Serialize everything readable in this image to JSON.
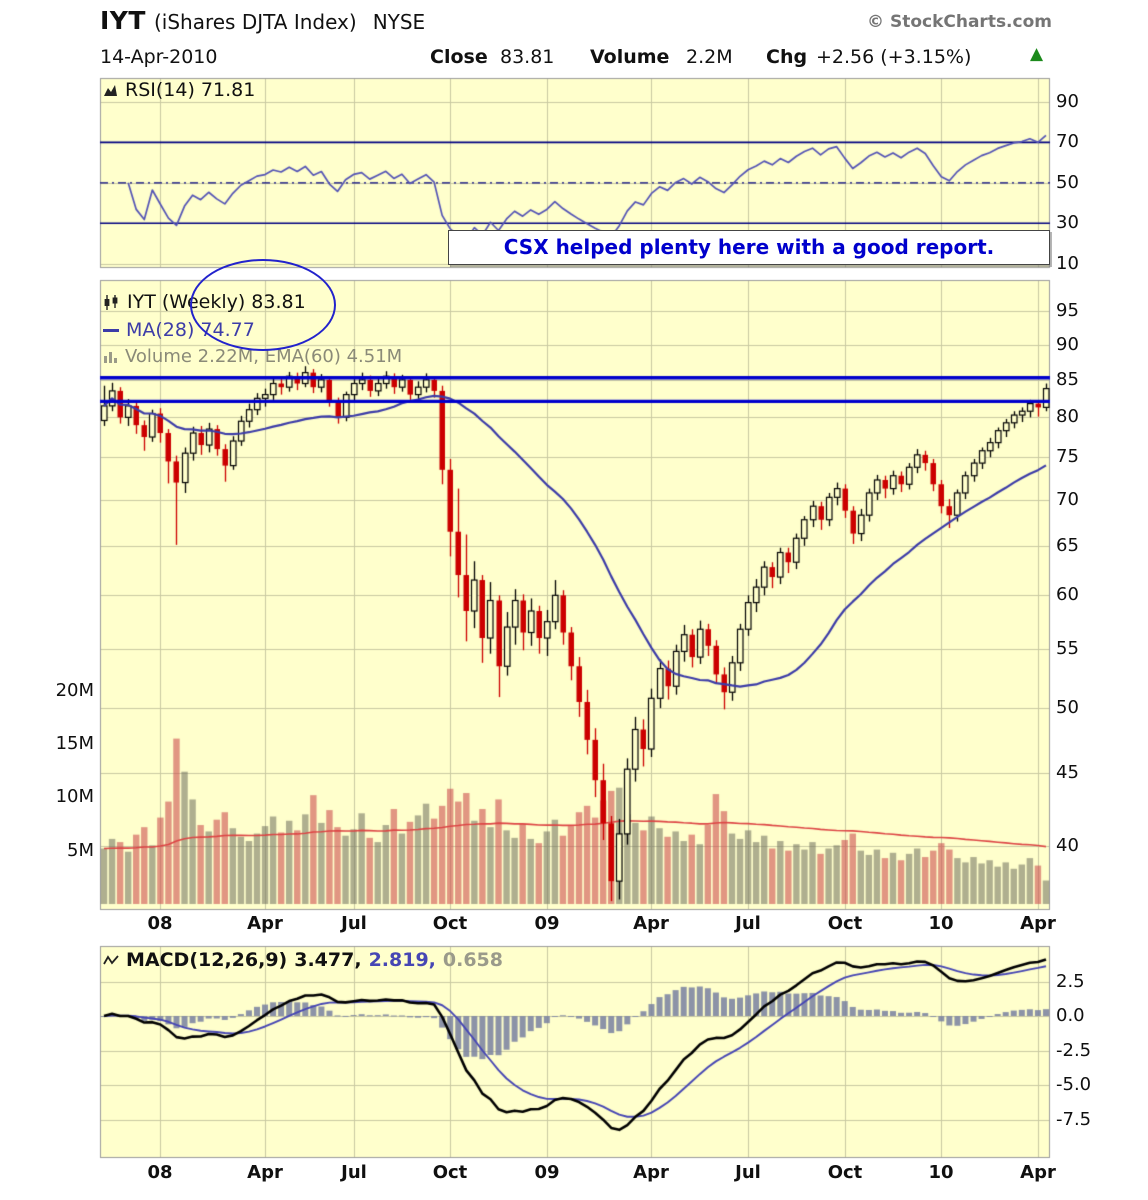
{
  "header": {
    "symbol": "IYT",
    "name": "(iShares DJTA Index)",
    "exchange": "NYSE",
    "brand": "© StockCharts.com",
    "date": "14-Apr-2010",
    "close_label": "Close",
    "close_value": "83.81",
    "volume_label": "Volume",
    "volume_value": "2.2M",
    "chg_label": "Chg",
    "chg_value": "+2.56 (+3.15%)",
    "arrow": "▲"
  },
  "annotation": {
    "text": "CSX helped plenty here with a good report."
  },
  "legends": {
    "rsi": "RSI(14) 71.81",
    "price": "IYT (Weekly) 83.81",
    "ma": "MA(28) 74.77",
    "volume": "Volume 2.22M, EMA(60) 4.51M",
    "macd_name": "MACD(12,26,9)",
    "macd_value": "3.477,",
    "signal_value": "2.819,",
    "hist_value": "0.658"
  },
  "x_axis": {
    "labels": [
      "08",
      "Apr",
      "Jul",
      "Oct",
      "09",
      "Apr",
      "Jul",
      "Oct",
      "10",
      "Apr"
    ],
    "indices": [
      7,
      20,
      31,
      43,
      55,
      68,
      80,
      92,
      104,
      116
    ]
  },
  "axes": {
    "price_ticks": [
      95,
      90,
      85,
      80,
      75,
      70,
      65,
      60,
      55,
      50,
      45,
      40
    ],
    "rsi_ticks": [
      90,
      70,
      50,
      30,
      10
    ],
    "macd_ticks": [
      2.5,
      0.0,
      -2.5,
      -5.0,
      -7.5
    ],
    "volume_tick_labels": [
      "20M",
      "15M",
      "10M",
      "5M"
    ],
    "volume_tick_values": [
      20,
      15,
      10,
      5
    ]
  },
  "colors": {
    "panel_bg": "#ffffcc",
    "grid": "#c9c9a2",
    "panel_border": "#9a9a9a",
    "candle_up": "#000000",
    "candle_down": "#cc0000",
    "ma_line": "#3c3ca8",
    "rsi_line": "#5353b5",
    "rsi_band": "#000080",
    "resistance_line": "#0000cc",
    "volume_up": "rgba(110,110,92,0.55)",
    "volume_down": "rgba(205,80,80,0.6)",
    "volume_ema": "#dd4444",
    "macd_line": "#000000",
    "macd_signal": "#4646b4",
    "macd_hist": "rgba(120,128,160,0.85)"
  },
  "chart_data": {
    "type": "candlestick",
    "timeframe": "weekly",
    "price_log_scale": true,
    "title": "IYT (iShares DJTA Index) NYSE Weekly",
    "ohlc": [
      [
        79.6,
        84.2,
        78.9,
        81.5
      ],
      [
        81.5,
        84.6,
        80.8,
        83.5
      ],
      [
        83.5,
        84.0,
        79.2,
        80.0
      ],
      [
        80.0,
        82.4,
        78.9,
        81.5
      ],
      [
        81.5,
        82.0,
        77.9,
        79.0
      ],
      [
        79.0,
        79.6,
        75.8,
        77.5
      ],
      [
        77.5,
        81.0,
        76.9,
        80.5
      ],
      [
        80.5,
        81.2,
        76.8,
        78.0
      ],
      [
        78.0,
        78.5,
        71.9,
        74.5
      ],
      [
        74.5,
        75.2,
        65.1,
        72.0
      ],
      [
        72.0,
        76.2,
        70.8,
        75.5
      ],
      [
        75.5,
        78.8,
        74.6,
        78.0
      ],
      [
        78.0,
        78.9,
        75.3,
        76.5
      ],
      [
        76.5,
        79.3,
        75.6,
        78.5
      ],
      [
        78.5,
        79.0,
        75.2,
        76.0
      ],
      [
        76.0,
        76.6,
        72.1,
        74.0
      ],
      [
        74.0,
        77.6,
        73.5,
        77.0
      ],
      [
        77.0,
        80.2,
        76.4,
        79.5
      ],
      [
        79.5,
        81.8,
        78.7,
        81.0
      ],
      [
        81.0,
        83.2,
        80.3,
        82.5
      ],
      [
        82.5,
        83.8,
        81.4,
        83.0
      ],
      [
        83.0,
        85.2,
        82.3,
        84.5
      ],
      [
        84.5,
        85.4,
        83.0,
        84.0
      ],
      [
        84.0,
        86.1,
        83.4,
        85.5
      ],
      [
        85.5,
        86.0,
        83.6,
        84.5
      ],
      [
        84.5,
        86.9,
        84.0,
        86.0
      ],
      [
        86.0,
        86.5,
        83.2,
        84.0
      ],
      [
        84.0,
        85.8,
        83.3,
        85.0
      ],
      [
        85.0,
        85.5,
        81.4,
        82.0
      ],
      [
        82.0,
        82.6,
        79.2,
        80.0
      ],
      [
        80.0,
        83.4,
        79.5,
        83.0
      ],
      [
        83.0,
        85.1,
        82.2,
        84.5
      ],
      [
        84.5,
        86.0,
        83.6,
        85.0
      ],
      [
        85.0,
        85.6,
        82.7,
        83.5
      ],
      [
        83.5,
        85.2,
        82.8,
        84.5
      ],
      [
        84.5,
        86.2,
        83.8,
        85.5
      ],
      [
        85.5,
        85.9,
        83.1,
        84.0
      ],
      [
        84.0,
        85.7,
        83.4,
        85.0
      ],
      [
        85.0,
        85.4,
        82.3,
        83.0
      ],
      [
        83.0,
        84.8,
        82.2,
        84.0
      ],
      [
        84.0,
        85.9,
        83.3,
        85.0
      ],
      [
        85.0,
        85.5,
        82.6,
        83.5
      ],
      [
        83.5,
        84.2,
        71.8,
        73.5
      ],
      [
        73.5,
        74.8,
        63.9,
        66.5
      ],
      [
        66.5,
        71.3,
        59.8,
        62.0
      ],
      [
        62.0,
        66.2,
        55.7,
        58.5
      ],
      [
        58.5,
        63.4,
        56.9,
        61.5
      ],
      [
        61.5,
        62.0,
        53.8,
        56.0
      ],
      [
        56.0,
        61.3,
        54.6,
        59.5
      ],
      [
        59.5,
        60.0,
        50.9,
        53.5
      ],
      [
        53.5,
        58.4,
        52.7,
        57.0
      ],
      [
        57.0,
        60.6,
        55.4,
        59.5
      ],
      [
        59.5,
        60.1,
        54.9,
        56.5
      ],
      [
        56.5,
        59.7,
        55.3,
        58.5
      ],
      [
        58.5,
        59.0,
        54.6,
        56.0
      ],
      [
        56.0,
        58.6,
        54.4,
        57.5
      ],
      [
        57.5,
        61.5,
        56.8,
        60.0
      ],
      [
        60.0,
        60.5,
        55.4,
        56.5
      ],
      [
        56.5,
        57.0,
        52.3,
        53.5
      ],
      [
        53.5,
        54.3,
        49.3,
        50.5
      ],
      [
        50.5,
        51.5,
        46.4,
        47.5
      ],
      [
        47.5,
        48.4,
        43.3,
        44.5
      ],
      [
        44.5,
        45.7,
        40.4,
        41.5
      ],
      [
        41.5,
        42.0,
        36.6,
        37.8
      ],
      [
        37.8,
        41.8,
        36.7,
        40.8
      ],
      [
        40.8,
        46.1,
        40.1,
        45.3
      ],
      [
        45.3,
        49.3,
        44.4,
        48.3
      ],
      [
        48.3,
        49.1,
        45.5,
        46.8
      ],
      [
        46.8,
        51.6,
        46.2,
        50.8
      ],
      [
        50.8,
        54.1,
        50.0,
        53.3
      ],
      [
        53.3,
        54.0,
        50.7,
        51.8
      ],
      [
        51.8,
        55.4,
        51.1,
        54.8
      ],
      [
        54.8,
        57.2,
        53.9,
        56.3
      ],
      [
        56.3,
        56.8,
        53.4,
        54.3
      ],
      [
        54.3,
        57.6,
        53.7,
        56.8
      ],
      [
        56.8,
        57.3,
        54.4,
        55.3
      ],
      [
        55.3,
        55.8,
        52.0,
        52.8
      ],
      [
        52.8,
        53.4,
        49.9,
        51.3
      ],
      [
        51.3,
        54.4,
        50.6,
        53.8
      ],
      [
        53.8,
        57.3,
        53.1,
        56.8
      ],
      [
        56.8,
        60.0,
        56.2,
        59.3
      ],
      [
        59.3,
        61.6,
        58.4,
        60.8
      ],
      [
        60.8,
        63.4,
        60.0,
        62.8
      ],
      [
        62.8,
        63.3,
        60.7,
        61.8
      ],
      [
        61.8,
        64.8,
        61.1,
        64.3
      ],
      [
        64.3,
        64.8,
        62.2,
        63.3
      ],
      [
        63.3,
        66.3,
        62.6,
        65.8
      ],
      [
        65.8,
        68.2,
        65.0,
        67.8
      ],
      [
        67.8,
        69.9,
        67.0,
        69.3
      ],
      [
        69.3,
        69.8,
        66.7,
        67.8
      ],
      [
        67.8,
        70.8,
        67.1,
        70.3
      ],
      [
        70.3,
        72.0,
        69.4,
        71.3
      ],
      [
        71.3,
        71.8,
        68.0,
        68.8
      ],
      [
        68.8,
        69.3,
        65.2,
        66.3
      ],
      [
        66.3,
        69.0,
        65.5,
        68.3
      ],
      [
        68.3,
        71.3,
        67.6,
        70.8
      ],
      [
        70.8,
        72.9,
        70.0,
        72.3
      ],
      [
        72.3,
        72.8,
        70.2,
        71.3
      ],
      [
        71.3,
        73.4,
        70.6,
        72.8
      ],
      [
        72.8,
        73.3,
        70.9,
        71.8
      ],
      [
        71.8,
        74.3,
        71.2,
        73.8
      ],
      [
        73.8,
        76.0,
        73.1,
        75.3
      ],
      [
        75.3,
        75.8,
        73.4,
        74.3
      ],
      [
        74.3,
        74.8,
        71.0,
        71.8
      ],
      [
        71.8,
        72.3,
        68.5,
        69.3
      ],
      [
        69.3,
        70.1,
        66.9,
        68.3
      ],
      [
        68.3,
        71.2,
        67.6,
        70.8
      ],
      [
        70.8,
        73.3,
        70.1,
        72.8
      ],
      [
        72.8,
        74.8,
        72.1,
        74.3
      ],
      [
        74.3,
        76.2,
        73.6,
        75.8
      ],
      [
        75.8,
        77.4,
        75.0,
        76.8
      ],
      [
        76.8,
        78.7,
        76.1,
        78.3
      ],
      [
        78.3,
        79.8,
        77.5,
        79.3
      ],
      [
        79.3,
        80.8,
        78.6,
        80.3
      ],
      [
        80.3,
        81.3,
        79.4,
        80.8
      ],
      [
        80.8,
        82.3,
        80.0,
        81.8
      ],
      [
        81.8,
        82.2,
        80.1,
        81.3
      ],
      [
        81.3,
        84.5,
        80.8,
        83.81
      ]
    ],
    "volume_m": [
      5.2,
      6.1,
      5.8,
      4.9,
      6.5,
      7.2,
      5.5,
      8.1,
      9.6,
      15.5,
      12.4,
      9.8,
      7.4,
      6.8,
      7.9,
      8.6,
      7.1,
      6.3,
      5.9,
      6.6,
      7.3,
      8.2,
      6.7,
      7.8,
      6.9,
      8.4,
      10.2,
      7.6,
      8.8,
      7.2,
      6.4,
      7.0,
      8.5,
      6.2,
      5.8,
      7.4,
      8.9,
      6.6,
      7.7,
      8.3,
      9.4,
      8.0,
      9.2,
      10.8,
      9.6,
      10.4,
      7.8,
      8.9,
      7.2,
      9.8,
      6.9,
      6.2,
      7.5,
      6.1,
      5.7,
      6.8,
      7.9,
      6.4,
      7.3,
      8.6,
      9.2,
      8.1,
      9.7,
      10.6,
      10.9,
      8.4,
      7.6,
      6.9,
      8.2,
      7.1,
      6.3,
      6.8,
      5.9,
      6.5,
      5.6,
      7.4,
      10.3,
      8.7,
      6.6,
      6.1,
      6.9,
      5.8,
      6.4,
      5.2,
      5.9,
      5.0,
      5.6,
      5.1,
      5.8,
      4.7,
      5.2,
      5.5,
      6.0,
      6.6,
      5.0,
      4.6,
      5.1,
      4.3,
      4.8,
      4.1,
      4.7,
      5.2,
      4.4,
      5.0,
      5.7,
      5.1,
      4.3,
      3.9,
      4.4,
      3.8,
      4.1,
      3.5,
      3.9,
      3.3,
      3.7,
      4.3,
      3.6,
      2.2
    ],
    "overlays": {
      "ma_period": 28,
      "ma_current": 74.77,
      "price_hlines": [
        85.3,
        82.1
      ],
      "volume_ema_period": 60,
      "volume_current_m": 2.22,
      "volume_ema_current_m": 4.51
    },
    "indicators": {
      "rsi_period": 14,
      "rsi_current": 71.81,
      "rsi_overbought": 70,
      "rsi_mid": 50,
      "rsi_oversold": 30,
      "macd_params": [
        12,
        26,
        9
      ],
      "macd_current": 3.477,
      "signal_current": 2.819,
      "hist_current": 0.658
    }
  }
}
